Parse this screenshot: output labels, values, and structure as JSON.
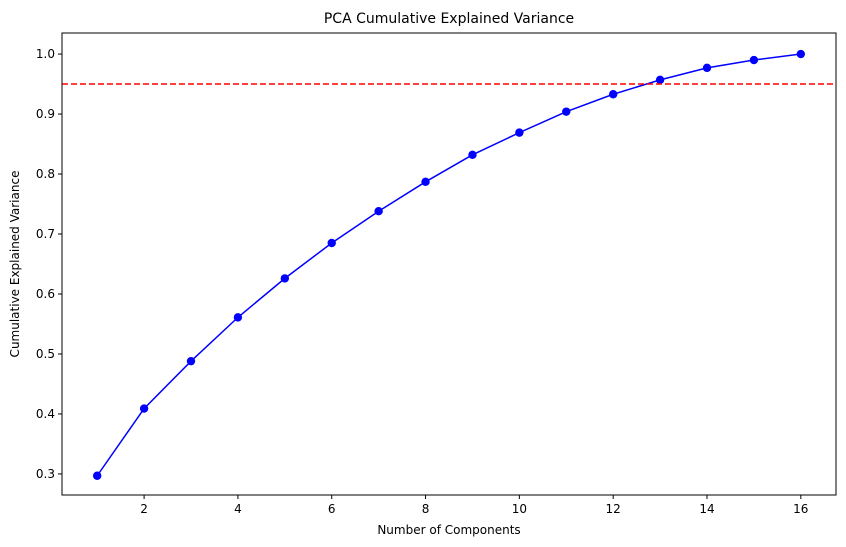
{
  "chart_data": {
    "type": "line",
    "title": "PCA Cumulative Explained Variance",
    "xlabel": "Number of Components",
    "ylabel": "Cumulative Explained Variance",
    "x": [
      1,
      2,
      3,
      4,
      5,
      6,
      7,
      8,
      9,
      10,
      11,
      12,
      13,
      14,
      15,
      16
    ],
    "series": [
      {
        "values": [
          0.297,
          0.409,
          0.488,
          0.561,
          0.626,
          0.685,
          0.738,
          0.787,
          0.832,
          0.869,
          0.904,
          0.933,
          0.957,
          0.977,
          0.99,
          1.0
        ],
        "color": "#0000ff",
        "marker": "circle"
      }
    ],
    "reference_line": {
      "y": 0.95,
      "color": "#ff0000",
      "style": "dashed"
    },
    "xlim": [
      0.25,
      16.75
    ],
    "ylim": [
      0.2649,
      1.0351
    ],
    "xticks": [
      2,
      4,
      6,
      8,
      10,
      12,
      14,
      16
    ],
    "yticks": [
      0.3,
      0.4,
      0.5,
      0.6,
      0.7,
      0.8,
      0.9,
      1.0
    ],
    "xtick_labels": [
      "2",
      "4",
      "6",
      "8",
      "10",
      "12",
      "14",
      "16"
    ],
    "ytick_labels": [
      "0.3",
      "0.4",
      "0.5",
      "0.6",
      "0.7",
      "0.8",
      "0.9",
      "1.0"
    ],
    "grid": false,
    "legend": "none"
  }
}
